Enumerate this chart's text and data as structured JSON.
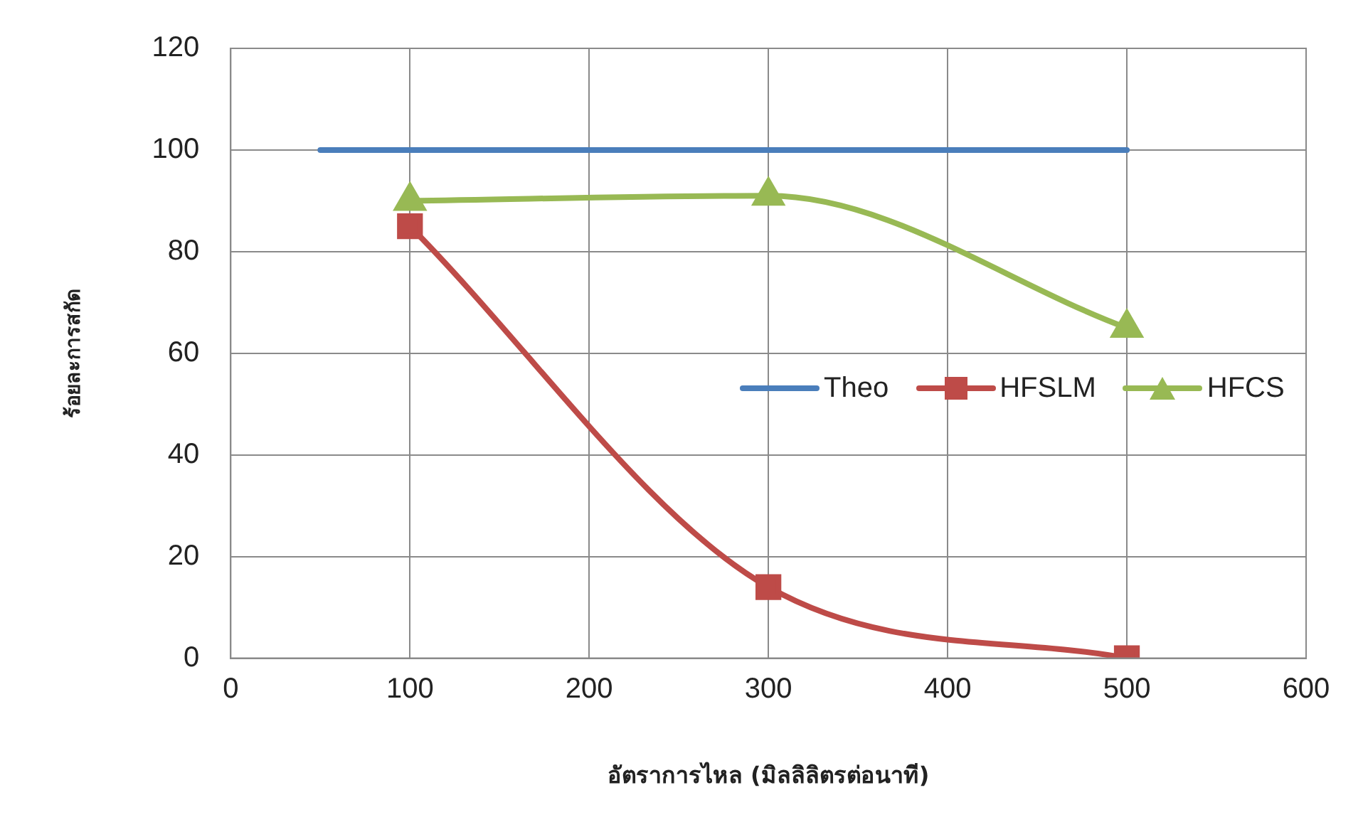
{
  "chart_data": {
    "type": "line",
    "xlabel": "อัตราการไหล (มิลลิลิตรต่อนาที)",
    "ylabel": "ร้อยละการสกัด",
    "xlim": [
      0,
      600
    ],
    "xticks": [
      0,
      100,
      200,
      300,
      400,
      500,
      600
    ],
    "ylim": [
      0,
      120
    ],
    "yticks": [
      0,
      20,
      40,
      60,
      80,
      100,
      120
    ],
    "grid": true,
    "legend": "right",
    "series": [
      {
        "name": "Theo",
        "color": "#4a7ebb",
        "x": [
          50,
          500
        ],
        "values": [
          100,
          100
        ],
        "marker": "none"
      },
      {
        "name": "HFSLM",
        "color": "#be4b48",
        "x": [
          100,
          300,
          500
        ],
        "values": [
          85,
          14,
          0
        ],
        "marker": "square"
      },
      {
        "name": "HFCS",
        "color": "#98b954",
        "x": [
          100,
          300,
          500
        ],
        "values": [
          90,
          91,
          65
        ],
        "marker": "triangle"
      }
    ]
  }
}
